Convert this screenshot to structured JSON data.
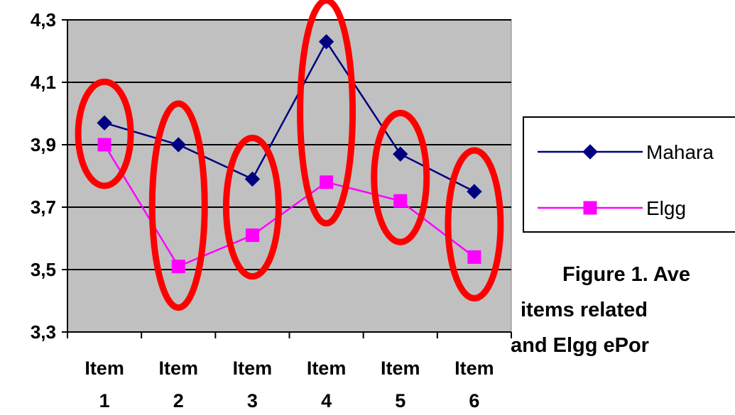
{
  "chart_data": {
    "type": "line",
    "categories": [
      [
        "Item",
        "1"
      ],
      [
        "Item",
        "2"
      ],
      [
        "Item",
        "3"
      ],
      [
        "Item",
        "4"
      ],
      [
        "Item",
        "5"
      ],
      [
        "Item",
        "6"
      ]
    ],
    "series": [
      {
        "name": "Mahara",
        "values": [
          3.97,
          3.9,
          3.79,
          4.23,
          3.87,
          3.75
        ],
        "color": "#000080",
        "marker": "diamond"
      },
      {
        "name": "Elgg",
        "values": [
          3.9,
          3.51,
          3.61,
          3.78,
          3.72,
          3.54
        ],
        "color": "#ff00ff",
        "marker": "square"
      }
    ],
    "ylim": [
      3.3,
      4.3
    ],
    "yticks": [
      "3,3",
      "3,5",
      "3,7",
      "3,9",
      "4,1",
      "4,3"
    ],
    "ytick_values": [
      3.3,
      3.5,
      3.7,
      3.9,
      4.1,
      4.3
    ],
    "plot_background": "#c0c0c0",
    "grid": true,
    "legend_placement": "right",
    "annotations": "red ellipse highlighting each item's pair of points",
    "highlight_color": "#ff0000",
    "caption_lines": [
      "Figure 1. Ave",
      "items related",
      "and Elgg ePor"
    ]
  }
}
